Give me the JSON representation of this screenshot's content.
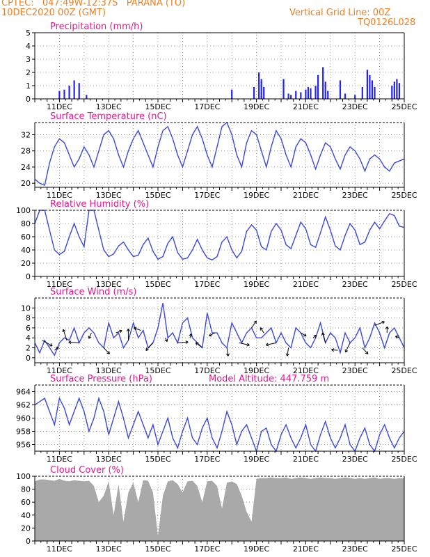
{
  "header": {
    "line1_left": "CPTEC:   047:49W-12:37S   PARANA (TO)",
    "line2_left": "10DEC2020 00Z (GMT)",
    "line1_right": "Vertical Grid Line: 00Z",
    "line2_right": "TQ0126L028"
  },
  "colors": {
    "header_text": "#ee7f22",
    "panel_title": "#e8178e",
    "series_line": "#3a46e0",
    "precip_bar": "#2424ee",
    "cloud_fill": "#a9a9a9",
    "wind_arrow": "#000000"
  },
  "x_ticks": [
    "11DEC",
    "13DEC",
    "15DEC",
    "17DEC",
    "19DEC",
    "21DEC",
    "23DEC",
    "25DEC"
  ],
  "chart_data": [
    {
      "type": "bar",
      "title": "Precipitation (mm/h)",
      "ylim": [
        0,
        5
      ],
      "yticks": [
        0,
        1,
        2,
        3,
        4,
        5
      ],
      "x": [
        "11.0DEC",
        "11.2DEC",
        "11.4DEC",
        "11.6DEC",
        "11.8DEC",
        "12.1DEC",
        "18.0DEC",
        "18.9DEC",
        "19.1DEC",
        "19.2DEC",
        "19.3DEC",
        "20.1DEC",
        "20.3DEC",
        "20.4DEC",
        "20.6DEC",
        "20.8DEC",
        "21.0DEC",
        "21.1DEC",
        "21.2DEC",
        "21.4DEC",
        "21.5DEC",
        "21.7DEC",
        "21.8DEC",
        "21.9DEC",
        "22.4DEC",
        "22.6DEC",
        "23.0DEC",
        "23.3DEC",
        "23.5DEC",
        "23.6DEC",
        "23.7DEC",
        "23.8DEC",
        "24.5DEC",
        "24.6DEC",
        "24.7DEC",
        "24.8DEC"
      ],
      "values": [
        0.6,
        0.7,
        1.0,
        1.4,
        1.2,
        0.3,
        0.7,
        0.9,
        2.0,
        1.5,
        0.9,
        1.5,
        0.4,
        0.3,
        0.6,
        0.5,
        0.7,
        0.9,
        0.8,
        1.0,
        1.8,
        2.4,
        1.3,
        0.6,
        1.4,
        0.4,
        0.3,
        0.9,
        2.2,
        1.8,
        1.4,
        0.9,
        1.0,
        1.3,
        1.5,
        1.2
      ]
    },
    {
      "type": "line",
      "title": "Surface Temperature (nC)",
      "ylim": [
        19,
        35
      ],
      "yticks": [
        20,
        24,
        28,
        32
      ],
      "series": [
        {
          "x": [
            10.0,
            10.2,
            10.4,
            10.6,
            10.8,
            11.0,
            11.2,
            11.4,
            11.6,
            11.8,
            12.0,
            12.2,
            12.4,
            12.6,
            12.8,
            13.0,
            13.2,
            13.4,
            13.6,
            13.8,
            14.0,
            14.2,
            14.4,
            14.6,
            14.8,
            15.0,
            15.2,
            15.4,
            15.6,
            15.8,
            16.0,
            16.2,
            16.4,
            16.6,
            16.8,
            17.0,
            17.2,
            17.4,
            17.6,
            17.8,
            18.0,
            18.2,
            18.4,
            18.6,
            18.8,
            19.0,
            19.2,
            19.4,
            19.6,
            19.8,
            20.0,
            20.2,
            20.4,
            20.6,
            20.8,
            21.0,
            21.2,
            21.4,
            21.6,
            21.8,
            22.0,
            22.2,
            22.4,
            22.6,
            22.8,
            23.0,
            23.2,
            23.4,
            23.6,
            23.8,
            24.0,
            24.2,
            24.4,
            24.6,
            24.8,
            25.0
          ],
          "values": [
            21,
            20,
            19.5,
            25,
            29,
            31,
            30,
            27,
            24,
            26,
            29,
            27,
            24,
            28,
            32,
            33,
            31,
            27,
            24,
            28,
            31,
            33,
            30,
            27,
            24,
            29,
            33,
            34,
            31,
            27,
            24,
            28,
            32,
            34,
            31,
            27,
            24,
            29,
            34,
            35,
            32,
            27,
            24,
            30,
            33,
            32,
            28,
            24,
            29,
            33,
            31,
            27,
            24,
            29,
            31,
            30,
            27,
            23.5,
            27,
            30,
            29,
            26,
            23.5,
            27,
            29,
            28,
            26,
            23,
            26,
            27,
            26,
            24,
            23,
            25,
            25.5,
            26
          ]
        }
      ]
    },
    {
      "type": "line",
      "title": "Relative Humidity (%)",
      "ylim": [
        0,
        100
      ],
      "yticks": [
        0,
        20,
        40,
        60,
        80,
        100
      ],
      "series": [
        {
          "x": [
            10.0,
            10.2,
            10.4,
            10.6,
            10.8,
            11.0,
            11.2,
            11.4,
            11.6,
            11.8,
            12.0,
            12.2,
            12.4,
            12.6,
            12.8,
            13.0,
            13.2,
            13.4,
            13.6,
            13.8,
            14.0,
            14.2,
            14.4,
            14.6,
            14.8,
            15.0,
            15.2,
            15.4,
            15.6,
            15.8,
            16.0,
            16.2,
            16.4,
            16.6,
            16.8,
            17.0,
            17.2,
            17.4,
            17.6,
            17.8,
            18.0,
            18.2,
            18.4,
            18.6,
            18.8,
            19.0,
            19.2,
            19.4,
            19.6,
            19.8,
            20.0,
            20.2,
            20.4,
            20.6,
            20.8,
            21.0,
            21.2,
            21.4,
            21.6,
            21.8,
            22.0,
            22.2,
            22.4,
            22.6,
            22.8,
            23.0,
            23.2,
            23.4,
            23.6,
            23.8,
            24.0,
            24.2,
            24.4,
            24.6,
            24.8,
            25.0
          ],
          "values": [
            80,
            100,
            100,
            70,
            40,
            33,
            38,
            60,
            80,
            60,
            45,
            100,
            100,
            70,
            40,
            30,
            34,
            46,
            52,
            40,
            30,
            32,
            48,
            58,
            38,
            26,
            30,
            50,
            60,
            36,
            26,
            28,
            40,
            56,
            40,
            28,
            25,
            30,
            52,
            60,
            40,
            28,
            38,
            68,
            78,
            70,
            45,
            40,
            68,
            80,
            70,
            48,
            42,
            62,
            82,
            72,
            48,
            44,
            66,
            90,
            70,
            46,
            40,
            62,
            80,
            70,
            48,
            52,
            70,
            82,
            72,
            84,
            95,
            92,
            76,
            74
          ]
        }
      ]
    },
    {
      "type": "line",
      "title": "Surface Wind (m/s)",
      "ylim": [
        -1,
        12
      ],
      "yticks": [
        0,
        2,
        4,
        6,
        8,
        10
      ],
      "series": [
        {
          "x": [
            10.0,
            10.2,
            10.4,
            10.6,
            10.8,
            11.0,
            11.2,
            11.4,
            11.6,
            11.8,
            12.0,
            12.2,
            12.4,
            12.6,
            12.8,
            13.0,
            13.2,
            13.4,
            13.6,
            13.8,
            14.0,
            14.2,
            14.4,
            14.6,
            14.8,
            15.0,
            15.2,
            15.4,
            15.6,
            15.8,
            16.0,
            16.2,
            16.4,
            16.6,
            16.8,
            17.0,
            17.2,
            17.4,
            17.6,
            17.8,
            18.0,
            18.2,
            18.4,
            18.6,
            18.8,
            19.0,
            19.2,
            19.4,
            19.6,
            19.8,
            20.0,
            20.2,
            20.4,
            20.6,
            20.8,
            21.0,
            21.2,
            21.4,
            21.6,
            21.8,
            22.0,
            22.2,
            22.4,
            22.6,
            22.8,
            23.0,
            23.2,
            23.4,
            23.6,
            23.8,
            24.0,
            24.2,
            24.4,
            24.6,
            24.8,
            25.0
          ],
          "values": [
            3,
            1,
            3.5,
            2,
            0.5,
            3,
            4,
            3.5,
            6,
            3,
            5,
            6,
            5,
            3,
            2,
            7,
            4,
            5,
            2,
            3.5,
            7,
            4,
            5.5,
            2,
            3,
            6,
            11,
            4,
            5,
            3,
            7,
            8,
            4,
            3,
            2,
            9,
            5,
            5,
            3,
            2,
            7,
            5,
            3,
            5,
            6,
            4,
            4,
            5,
            6,
            3,
            5,
            3,
            2,
            6,
            5,
            3,
            2,
            4,
            7,
            3,
            5,
            4,
            1,
            5,
            3,
            4,
            6,
            2,
            4,
            7,
            5,
            2,
            5,
            6,
            4,
            2
          ]
        }
      ]
    },
    {
      "type": "line",
      "title": "Surface Pressure (hPa)",
      "annotation": "Model Altitude: 447.759 m",
      "ylim": [
        955,
        965
      ],
      "yticks": [
        956,
        958,
        960,
        962,
        964
      ],
      "series": [
        {
          "x": [
            10.0,
            10.2,
            10.4,
            10.6,
            10.8,
            11.0,
            11.2,
            11.4,
            11.6,
            11.8,
            12.0,
            12.2,
            12.4,
            12.6,
            12.8,
            13.0,
            13.2,
            13.4,
            13.6,
            13.8,
            14.0,
            14.2,
            14.4,
            14.6,
            14.8,
            15.0,
            15.2,
            15.4,
            15.6,
            15.8,
            16.0,
            16.2,
            16.4,
            16.6,
            16.8,
            17.0,
            17.2,
            17.4,
            17.6,
            17.8,
            18.0,
            18.2,
            18.4,
            18.6,
            18.8,
            19.0,
            19.2,
            19.4,
            19.6,
            19.8,
            20.0,
            20.2,
            20.4,
            20.6,
            20.8,
            21.0,
            21.2,
            21.4,
            21.6,
            21.8,
            22.0,
            22.2,
            22.4,
            22.6,
            22.8,
            23.0,
            23.2,
            23.4,
            23.6,
            23.8,
            24.0,
            24.2,
            24.4,
            24.6,
            24.8,
            25.0
          ],
          "values": [
            962,
            962.5,
            963,
            961,
            959,
            963,
            961.5,
            959,
            961,
            963,
            961,
            958,
            960,
            963,
            961,
            957.5,
            960,
            962.5,
            960,
            957,
            959,
            961,
            959,
            957,
            959,
            956,
            958,
            960,
            957,
            955.5,
            958,
            960,
            957,
            956,
            958.5,
            960,
            957,
            955.5,
            958,
            961,
            959,
            956,
            958,
            959,
            957,
            955,
            958,
            958.5,
            956,
            955,
            957.5,
            959,
            957,
            955.5,
            957,
            959,
            956,
            955,
            957.5,
            959.5,
            957,
            955.5,
            957,
            959,
            956,
            955,
            957,
            958.5,
            956,
            955,
            957.5,
            959,
            957,
            955.5,
            957,
            958
          ]
        }
      ]
    },
    {
      "type": "area",
      "title": "Cloud Cover (%)",
      "ylim": [
        0,
        100
      ],
      "yticks": [
        0,
        20,
        40,
        60,
        80,
        100
      ],
      "series": [
        {
          "x": [
            10.0,
            10.2,
            10.4,
            10.6,
            10.8,
            11.0,
            11.2,
            11.4,
            11.6,
            11.8,
            12.0,
            12.2,
            12.4,
            12.6,
            12.8,
            13.0,
            13.2,
            13.4,
            13.6,
            13.8,
            14.0,
            14.2,
            14.4,
            14.6,
            14.8,
            15.0,
            15.2,
            15.4,
            15.6,
            15.8,
            16.0,
            16.2,
            16.4,
            16.6,
            16.8,
            17.0,
            17.2,
            17.4,
            17.6,
            17.8,
            18.0,
            18.2,
            18.4,
            18.6,
            18.8,
            19.0,
            19.2,
            19.4,
            19.6,
            19.8,
            20.0,
            20.2,
            20.4,
            20.6,
            20.8,
            21.0,
            21.2,
            21.4,
            21.6,
            21.8,
            22.0,
            22.2,
            22.4,
            22.6,
            22.8,
            23.0,
            23.2,
            23.4,
            23.6,
            23.8,
            24.0,
            24.2,
            24.4,
            24.6,
            24.8,
            25.0
          ],
          "values": [
            92,
            95,
            95,
            94,
            93,
            96,
            93,
            92,
            94,
            93,
            92,
            93,
            85,
            60,
            70,
            92,
            40,
            88,
            30,
            75,
            90,
            60,
            94,
            93,
            75,
            8,
            70,
            92,
            94,
            88,
            75,
            92,
            93,
            85,
            60,
            92,
            93,
            85,
            50,
            90,
            92,
            88,
            70,
            45,
            30,
            96,
            97,
            97,
            98,
            97,
            97,
            98,
            96,
            97,
            98,
            97,
            96,
            97,
            98,
            97,
            97,
            96,
            97,
            98,
            97,
            96,
            97,
            96,
            97,
            98,
            96,
            97,
            97,
            96,
            97,
            97
          ]
        }
      ]
    }
  ]
}
